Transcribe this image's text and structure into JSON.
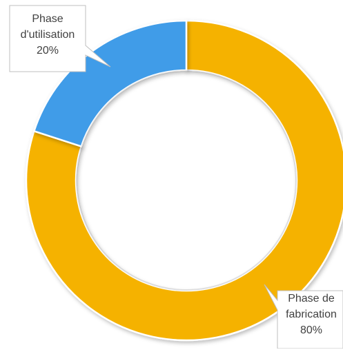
{
  "chart_data": {
    "type": "pie",
    "title": "",
    "series": [
      {
        "values": [
          80,
          20
        ]
      }
    ],
    "slices": [
      {
        "label_line1": "Phase de",
        "label_line2": "fabrication",
        "value": 80,
        "value_label": "80%",
        "color": "#F5B201"
      },
      {
        "label_line1": "Phase",
        "label_line2": "d'utilisation",
        "value": 20,
        "value_label": "20%",
        "color": "#3F9CE8"
      }
    ],
    "legend": "none",
    "style": "doughnut"
  }
}
